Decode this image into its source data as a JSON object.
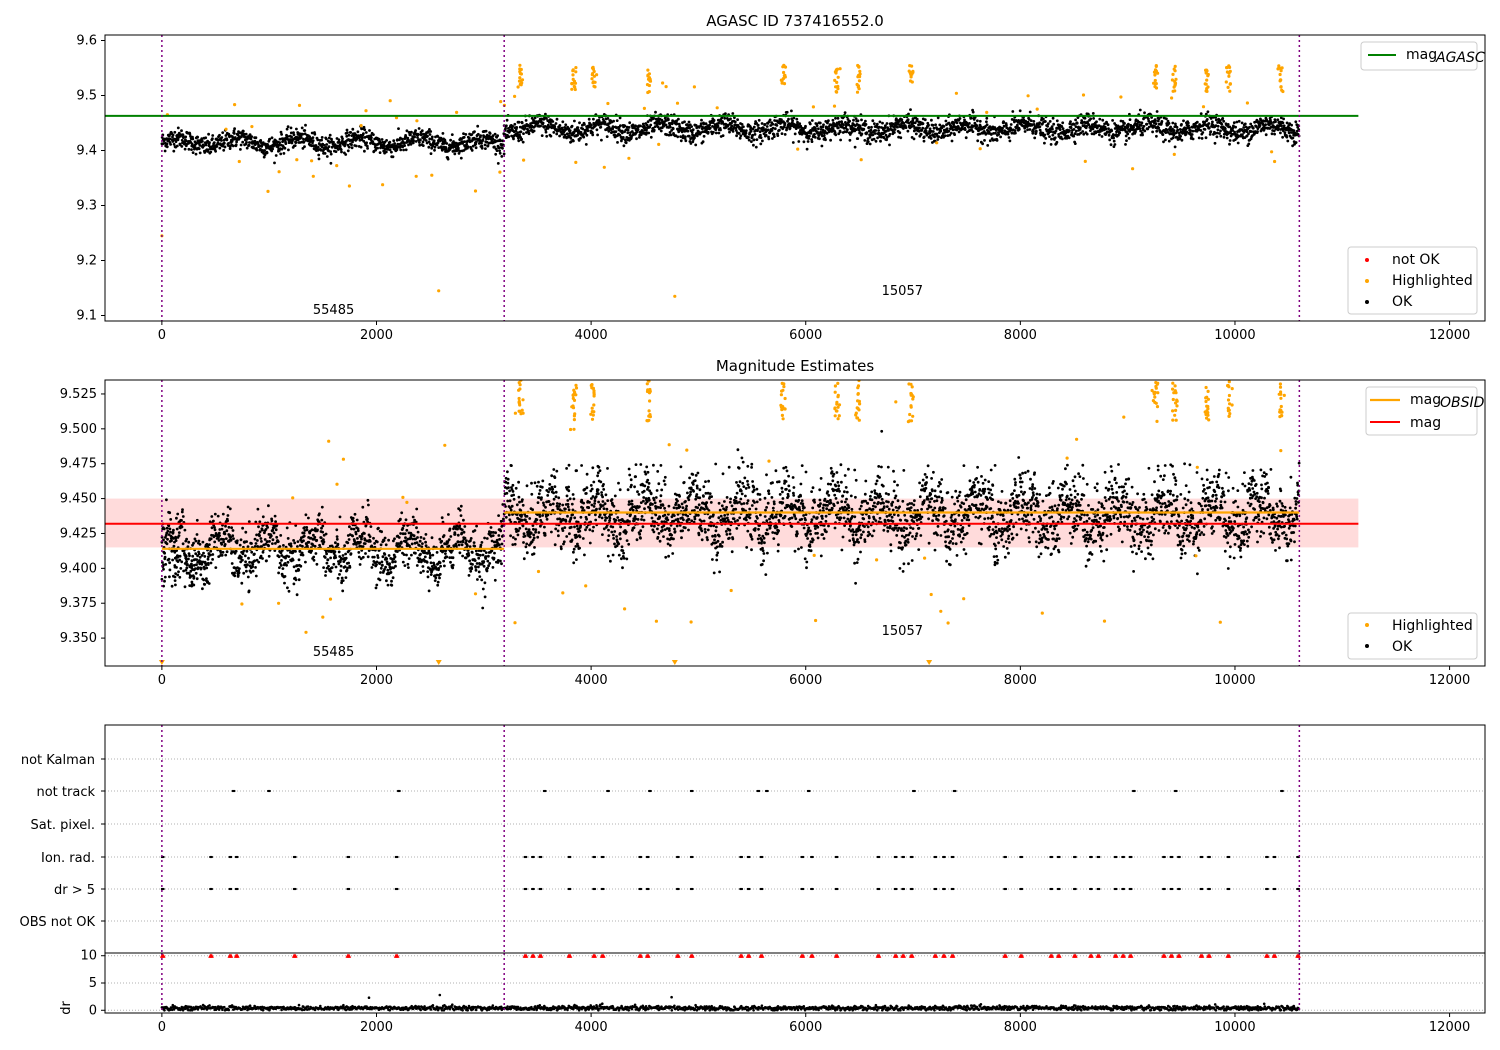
{
  "chart_data": [
    {
      "type": "scatter",
      "title": "AGASC ID 737416552.0",
      "xlim": [
        -530,
        12330
      ],
      "ylim": [
        9.09,
        9.61
      ],
      "xticks": [
        0,
        2000,
        4000,
        6000,
        8000,
        10000,
        12000
      ],
      "yticks": [
        9.1,
        9.2,
        9.3,
        9.4,
        9.5,
        9.6
      ],
      "obsid_boundaries": [
        0,
        3190,
        10600
      ],
      "obsid_labels": [
        {
          "text": "55485",
          "x": 1600,
          "y": 9.11
        },
        {
          "text": "15057",
          "x": 6900,
          "y": 9.145
        }
      ],
      "lines": [
        {
          "name": "mag$_{AGASC}$",
          "label_main": "mag",
          "label_sub": "AGASC",
          "color": "#008000",
          "y": 9.463,
          "x_range": [
            -530,
            11150
          ]
        }
      ],
      "series": [
        {
          "name": "not OK",
          "color": "#ff0000",
          "values": []
        },
        {
          "name": "Highlighted",
          "color": "#ffa500",
          "segments": [
            {
              "x_range": [
                0,
                3190
              ],
              "level": 9.41,
              "spread": 0.02
            },
            {
              "x_range": [
                3190,
                10600
              ],
              "level": 9.44,
              "spread": 0.018
            }
          ]
        },
        {
          "name": "OK",
          "color": "#000000",
          "segments": [
            {
              "x_range": [
                0,
                3190
              ],
              "level": 9.415,
              "spread": 0.018
            },
            {
              "x_range": [
                3190,
                10600
              ],
              "level": 9.44,
              "spread": 0.02
            }
          ]
        }
      ],
      "highlight_clusters_x": [
        3340,
        3840,
        4020,
        4540,
        5790,
        6290,
        6490,
        6980,
        9260,
        9440,
        9740,
        9940,
        10430
      ],
      "highlight_cluster_range": [
        9.505,
        9.555
      ],
      "legend_lines": [
        "mag$_{AGASC}$"
      ],
      "legend_points": [
        "not OK",
        "Highlighted",
        "OK"
      ]
    },
    {
      "type": "scatter",
      "title": "Magnitude Estimates",
      "xlim": [
        -530,
        12330
      ],
      "ylim": [
        9.33,
        9.535
      ],
      "xticks": [
        0,
        2000,
        4000,
        6000,
        8000,
        10000,
        12000
      ],
      "yticks": [
        9.35,
        9.375,
        9.4,
        9.425,
        9.45,
        9.475,
        9.5,
        9.525
      ],
      "obsid_boundaries": [
        0,
        3190,
        10600
      ],
      "obsid_labels": [
        {
          "text": "55485",
          "x": 1600,
          "y": 9.34
        },
        {
          "text": "15057",
          "x": 6900,
          "y": 9.355
        }
      ],
      "lines": [
        {
          "name": "mag$_{OBSID}$",
          "label_main": "mag",
          "label_sub": "OBSID",
          "color": "#ffa500",
          "segments": [
            {
              "x_range": [
                0,
                3190
              ],
              "y": 9.414
            },
            {
              "x_range": [
                3190,
                10600
              ],
              "y": 9.44
            }
          ]
        },
        {
          "name": "mag",
          "color": "#ff0000",
          "y": 9.432,
          "band": [
            9.415,
            9.45
          ],
          "x_range": [
            -530,
            11150
          ]
        }
      ],
      "series": [
        {
          "name": "Highlighted",
          "color": "#ffa500"
        },
        {
          "name": "OK",
          "color": "#000000"
        }
      ],
      "legend_lines": [
        "mag$_{OBSID}$",
        "mag"
      ],
      "legend_points": [
        "Highlighted",
        "OK"
      ]
    },
    {
      "type": "scatter",
      "title": "",
      "xlim": [
        -530,
        12330
      ],
      "categories": [
        "OBS not OK",
        "dr > 5",
        "Ion. rad.",
        "Sat. pixel.",
        "not track",
        "not Kalman"
      ],
      "flag_x": {
        "not track": [
          660,
          990,
          2200,
          3560,
          4150,
          4540,
          4930,
          5550,
          5630,
          6020,
          7000,
          7380,
          9050,
          9440,
          10430
        ],
        "Ion. rad.": [
          0,
          450,
          630,
          690,
          1230,
          1730,
          2180,
          3380,
          3450,
          3520,
          3790,
          4020,
          4100,
          4450,
          4520,
          4800,
          4930,
          5390,
          5460,
          5580,
          5960,
          6050,
          6280,
          6670,
          6830,
          6900,
          6980,
          7200,
          7280,
          7360,
          7850,
          8000,
          8280,
          8350,
          8500,
          8650,
          8720,
          8880,
          8950,
          9020,
          9330,
          9400,
          9470,
          9680,
          9750,
          9930,
          10290,
          10360,
          10580
        ],
        "dr > 5": [
          0,
          450,
          630,
          690,
          1230,
          1730,
          2180,
          3380,
          3450,
          3520,
          3790,
          4020,
          4100,
          4450,
          4520,
          4800,
          4930,
          5390,
          5460,
          5580,
          5960,
          6050,
          6280,
          6670,
          6830,
          6900,
          6980,
          7200,
          7280,
          7360,
          7850,
          8000,
          8280,
          8350,
          8500,
          8650,
          8720,
          8880,
          8950,
          9020,
          9330,
          9400,
          9470,
          9680,
          9750,
          9930,
          10290,
          10360,
          10580
        ]
      },
      "obsid_boundaries": [
        0,
        3190,
        10600
      ]
    },
    {
      "type": "scatter",
      "ylabel": "dr",
      "xlim": [
        -530,
        12330
      ],
      "ylim": [
        -0.5,
        10.5
      ],
      "xticks": [
        0,
        2000,
        4000,
        6000,
        8000,
        10000,
        12000
      ],
      "yticks": [
        0,
        5,
        10
      ],
      "obsid_boundaries": [
        0,
        3190,
        10600
      ],
      "clipped_marker_y": 10,
      "series": [
        {
          "name": "dr",
          "color": "#000000",
          "level": 0.4,
          "spread": 0.35
        }
      ],
      "outliers": [
        {
          "x": 1930,
          "y": 2.3
        },
        {
          "x": 2590,
          "y": 2.8
        },
        {
          "x": 4750,
          "y": 2.4
        }
      ]
    }
  ],
  "colors": {
    "ok": "#000000",
    "highlighted": "#ffa500",
    "not_ok": "#ff0000",
    "agasc_line": "#008000",
    "mag_line": "#ff0000",
    "band": "#ffcccc",
    "boundary": "#800080"
  }
}
